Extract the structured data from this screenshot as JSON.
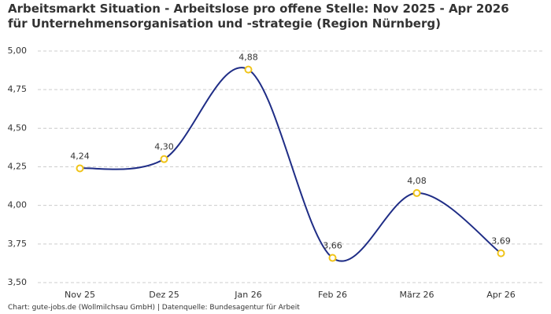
{
  "chart_data": {
    "type": "line",
    "title": "Arbeitsmarkt Situation - Arbeitslose pro offene Stelle: Nov 2025 - Apr 2026 für Unternehmensorganisation und -strategie (Region Nürnberg)",
    "source": "Chart: gute-jobs.de (Wollmilchsau GmbH) | Datenquelle: Bundesagentur für Arbeit",
    "categories": [
      "Nov 25",
      "Dez 25",
      "Jan 26",
      "Feb 26",
      "März 26",
      "Apr 26"
    ],
    "series": [
      {
        "name": "Arbeitslose pro offene Stelle",
        "color": "#1f2d86",
        "marker_color": "#f0c419",
        "values": [
          4.24,
          4.3,
          4.88,
          3.66,
          4.08,
          3.69
        ],
        "value_labels": [
          "4,24",
          "4,30",
          "4,88",
          "3,66",
          "4,08",
          "3,69"
        ]
      }
    ],
    "ylim": [
      3.5,
      5.0
    ],
    "yticks": [
      {
        "value": 3.5,
        "label": "3,50"
      },
      {
        "value": 3.75,
        "label": "3,75"
      },
      {
        "value": 4.0,
        "label": "4,00"
      },
      {
        "value": 4.25,
        "label": "4,25"
      },
      {
        "value": 4.5,
        "label": "4,50"
      },
      {
        "value": 4.75,
        "label": "4,75"
      },
      {
        "value": 5.0,
        "label": "5,00"
      }
    ],
    "grid": true
  }
}
